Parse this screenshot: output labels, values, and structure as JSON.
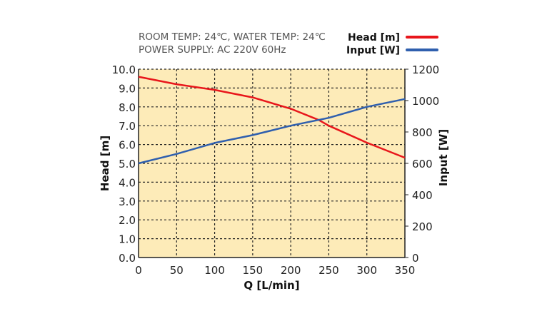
{
  "chart_data": {
    "type": "line",
    "notes": [
      "ROOM TEMP: 24℃, WATER TEMP: 24℃",
      "POWER SUPPLY: AC 220V 60Hz"
    ],
    "xlabel": "Q [L/min]",
    "ylabel": "Head [m]",
    "y2label": "Input [W]",
    "xlim": [
      0,
      350
    ],
    "ylim": [
      0,
      10
    ],
    "y2lim": [
      0,
      1200
    ],
    "xticks": [
      0,
      50,
      100,
      150,
      200,
      250,
      300,
      350
    ],
    "yticks": [
      "0.0",
      "1.0",
      "2.0",
      "3.0",
      "4.0",
      "5.0",
      "6.0",
      "7.0",
      "8.0",
      "9.0",
      "10.0"
    ],
    "y2ticks": [
      0,
      200,
      400,
      600,
      800,
      1000,
      1200
    ],
    "grid": true,
    "legend_position": "top-right",
    "background_color": "#fdebb8",
    "series": [
      {
        "name": "Head [m]",
        "axis": "left",
        "color": "#e8161b",
        "x": [
          0,
          50,
          100,
          150,
          200,
          237,
          250,
          300,
          350
        ],
        "y": [
          9.6,
          9.2,
          8.9,
          8.5,
          7.9,
          7.3,
          7.0,
          6.1,
          5.3
        ]
      },
      {
        "name": "Input [W]",
        "axis": "right",
        "color": "#2f5fae",
        "x": [
          0,
          50,
          100,
          150,
          200,
          250,
          300,
          350
        ],
        "y": [
          600,
          660,
          730,
          780,
          840,
          890,
          960,
          1010
        ]
      }
    ]
  }
}
